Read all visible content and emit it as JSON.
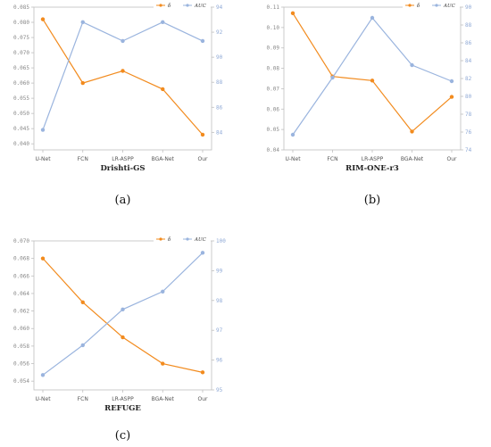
{
  "colors": {
    "delta": "#f28b1e",
    "auc": "#9ab4de",
    "axis": "#bfbfbf"
  },
  "chart_data": [
    {
      "type": "line",
      "title": "Drishti-GS",
      "caption": "(a)",
      "categories": [
        "U-Net",
        "FCN",
        "LR-ASPP",
        "BGA-Net",
        "Our"
      ],
      "legend": [
        "δ",
        "AUC"
      ],
      "legend_position": "top-right",
      "grid": false,
      "series": [
        {
          "name": "δ",
          "axis": "left",
          "values": [
            0.081,
            0.06,
            0.064,
            0.058,
            0.043
          ]
        },
        {
          "name": "AUC",
          "axis": "right",
          "values": [
            84.2,
            92.8,
            91.3,
            92.8,
            91.3
          ]
        }
      ],
      "y_left": {
        "min": 0.038,
        "max": 0.085,
        "ticks": [
          "0.040",
          "0.045",
          "0.050",
          "0.055",
          "0.060",
          "0.065",
          "0.070",
          "0.075",
          "0.080",
          "0.085"
        ]
      },
      "y_right": {
        "min": 82.6,
        "max": 94,
        "ticks": [
          "84",
          "86",
          "88",
          "90",
          "92",
          "94"
        ]
      }
    },
    {
      "type": "line",
      "title": "RIM-ONE-r3",
      "caption": "(b)",
      "categories": [
        "U-Net",
        "FCN",
        "LR-ASPP",
        "BGA-Net",
        "Our"
      ],
      "legend": [
        "δ",
        "AUC"
      ],
      "legend_position": "top-right",
      "grid": false,
      "series": [
        {
          "name": "δ",
          "axis": "left",
          "values": [
            0.107,
            0.076,
            0.074,
            0.049,
            0.066
          ]
        },
        {
          "name": "AUC",
          "axis": "right",
          "values": [
            75.7,
            82.1,
            88.8,
            83.5,
            81.7
          ]
        }
      ],
      "y_left": {
        "min": 0.04,
        "max": 0.11,
        "ticks": [
          "0.04",
          "0.05",
          "0.06",
          "0.07",
          "0.08",
          "0.09",
          "0.10",
          "0.11"
        ]
      },
      "y_right": {
        "min": 74,
        "max": 90,
        "ticks": [
          "74",
          "76",
          "78",
          "80",
          "82",
          "84",
          "86",
          "88",
          "90"
        ]
      }
    },
    {
      "type": "line",
      "title": "REFUGE",
      "caption": "(c)",
      "categories": [
        "U-Net",
        "FCN",
        "LR-ASPP",
        "BGA-Net",
        "Our"
      ],
      "legend": [
        "δ",
        "AUC"
      ],
      "legend_position": "top-right",
      "grid": false,
      "series": [
        {
          "name": "δ",
          "axis": "left",
          "values": [
            0.068,
            0.063,
            0.059,
            0.056,
            0.055
          ]
        },
        {
          "name": "AUC",
          "axis": "right",
          "values": [
            95.5,
            96.5,
            97.7,
            98.3,
            99.6
          ]
        }
      ],
      "y_left": {
        "min": 0.053,
        "max": 0.07,
        "ticks": [
          "0.054",
          "0.056",
          "0.058",
          "0.060",
          "0.062",
          "0.064",
          "0.066",
          "0.068",
          "0.070"
        ]
      },
      "y_right": {
        "min": 95,
        "max": 100,
        "ticks": [
          "95",
          "96",
          "97",
          "98",
          "99",
          "100"
        ]
      }
    }
  ]
}
